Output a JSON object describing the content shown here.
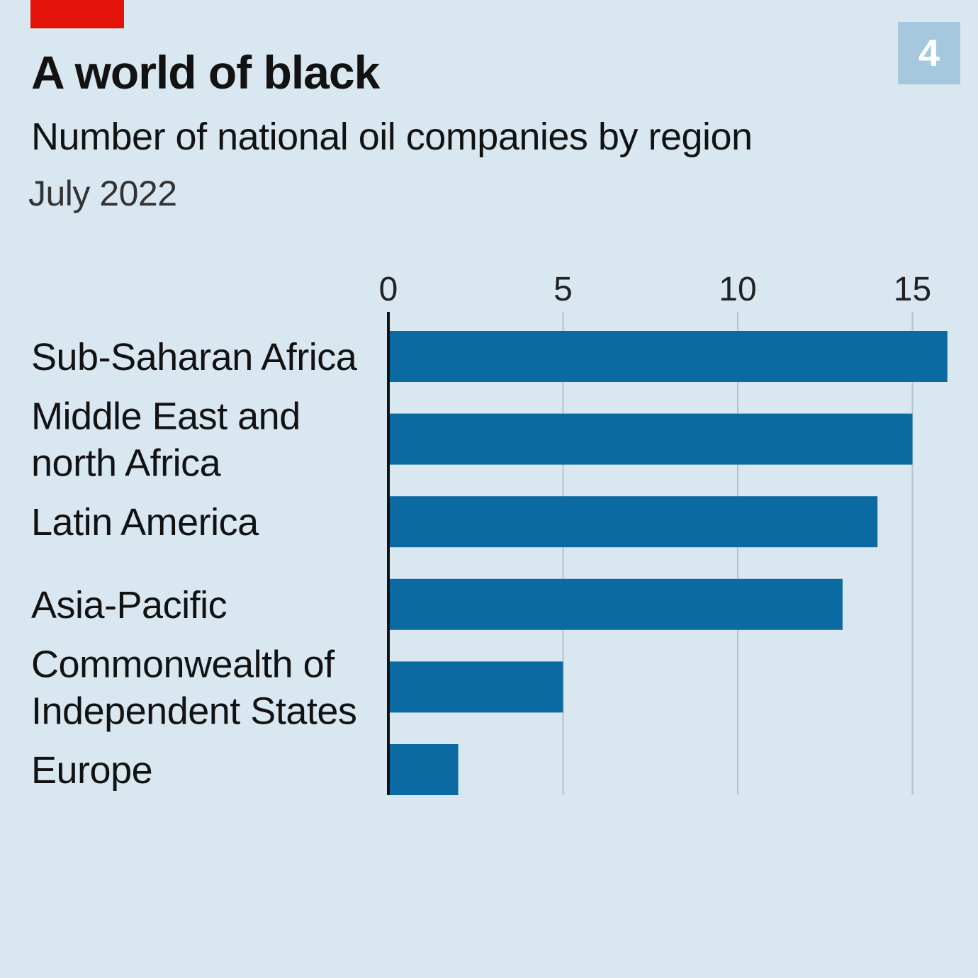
{
  "header": {
    "chart_number": "4"
  },
  "chart_data": {
    "type": "bar",
    "orientation": "horizontal",
    "title": "A world of black",
    "subtitle": "Number of national oil companies by region",
    "date": "July 2022",
    "categories": [
      [
        "Sub-Saharan Africa"
      ],
      [
        "Middle East and",
        "north Africa"
      ],
      [
        "Latin America"
      ],
      [
        "Asia-Pacific"
      ],
      [
        "Commonwealth of",
        "Independent States"
      ],
      [
        "Europe"
      ]
    ],
    "values": [
      16,
      15,
      14,
      13,
      5,
      2
    ],
    "xticks": [
      0,
      5,
      10,
      15
    ],
    "xlim": [
      0,
      16
    ],
    "xlabel": "",
    "ylabel": "",
    "bar_color": "#0a6aa1",
    "grid_color": "#b4c4cf",
    "axis_color": "#121212",
    "accent_color": "#e3120b"
  }
}
